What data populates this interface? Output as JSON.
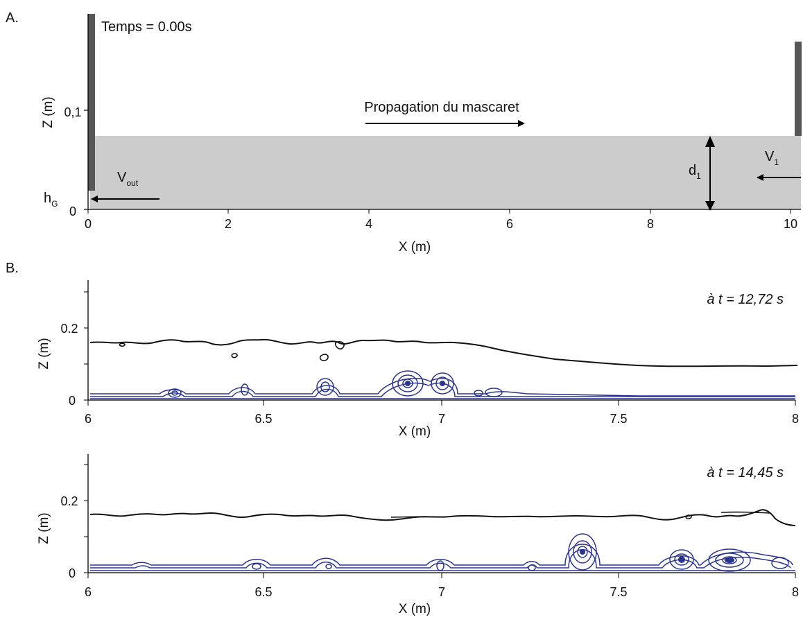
{
  "panel_a": {
    "label": "A.",
    "time_label": "Temps = 0.00s",
    "propagation_label": "Propagation du mascaret",
    "ylabel": "Z (m)",
    "xlabel": "X (m)",
    "y_ticks": [
      "0",
      "0,1"
    ],
    "x_ticks": [
      "0",
      "2",
      "4",
      "6",
      "8",
      "10"
    ],
    "vout": {
      "main": "V",
      "sub": "out"
    },
    "hg": {
      "main": "h",
      "sub": "G"
    },
    "d1": {
      "main": "d",
      "sub": "1"
    },
    "v1": {
      "main": "V",
      "sub": "1"
    },
    "colors": {
      "water": "#cccccc",
      "wall": "#575757",
      "arrow": "#000000"
    }
  },
  "panel_b": {
    "label": "B.",
    "colors": {
      "surface": "#111111",
      "streamline": "#2b3590"
    },
    "charts": [
      {
        "time_label": "à t = 12,72 s",
        "ylabel": "Z (m)",
        "xlabel": "X (m)",
        "x_ticks": [
          "6",
          "6.5",
          "7",
          "7.5",
          "8"
        ],
        "y_ticks": [
          "0",
          "0.2"
        ]
      },
      {
        "time_label": "à t = 14,45 s",
        "ylabel": "Z (m)",
        "xlabel": "X (m)",
        "x_ticks": [
          "6",
          "6.5",
          "7",
          "7.5",
          "8"
        ],
        "y_ticks": [
          "0",
          "0.2"
        ]
      }
    ]
  },
  "chart_data": [
    {
      "type": "line",
      "xlim": [
        6,
        8
      ],
      "ylim": [
        0,
        0.3
      ],
      "series": [
        {
          "x": [
            6.0,
            6.2,
            6.4,
            6.6,
            6.8,
            7.0,
            7.2,
            7.4,
            7.6,
            7.8,
            8.0
          ],
          "y": [
            0.15,
            0.155,
            0.16,
            0.165,
            0.16,
            0.15,
            0.125,
            0.1,
            0.09,
            0.09,
            0.09
          ]
        },
        {
          "x": [
            6.0,
            6.2,
            6.4,
            6.6,
            6.8,
            7.0,
            7.2,
            7.4,
            7.6,
            7.8,
            8.0
          ],
          "y": [
            0.015,
            0.02,
            0.02,
            0.025,
            0.035,
            0.03,
            0.02,
            0.015,
            0.01,
            0.01,
            0.01
          ]
        }
      ]
    },
    {
      "type": "line",
      "xlim": [
        6,
        8
      ],
      "ylim": [
        0,
        0.3
      ],
      "series": [
        {
          "x": [
            6.0,
            6.2,
            6.4,
            6.6,
            6.8,
            7.0,
            7.2,
            7.4,
            7.6,
            7.8,
            8.0
          ],
          "y": [
            0.16,
            0.16,
            0.15,
            0.15,
            0.145,
            0.145,
            0.15,
            0.155,
            0.155,
            0.165,
            0.12
          ]
        },
        {
          "x": [
            6.0,
            6.2,
            6.4,
            6.6,
            6.8,
            7.0,
            7.2,
            7.4,
            7.6,
            7.8,
            8.0
          ],
          "y": [
            0.015,
            0.015,
            0.015,
            0.015,
            0.015,
            0.015,
            0.015,
            0.05,
            0.02,
            0.04,
            0.02
          ]
        }
      ]
    }
  ]
}
